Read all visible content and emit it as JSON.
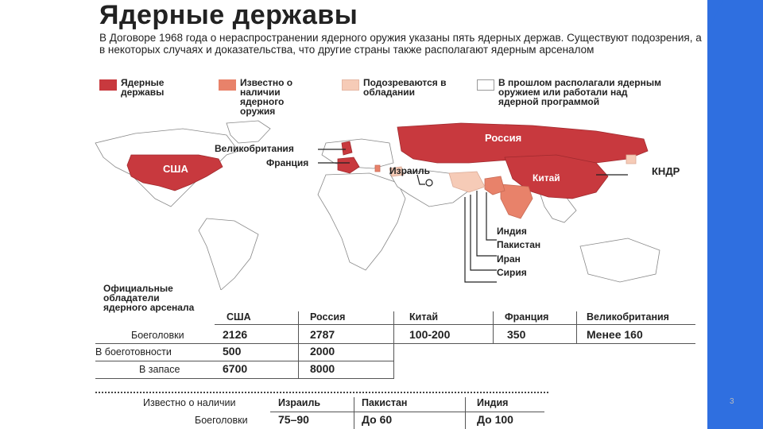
{
  "title": "Ядерные державы",
  "subtitle": "В Договоре 1968 года о нераспространении ядерного оружия указаны пять ядерных держав. Существуют подозрения, а в некоторых случаях и доказательства, что другие страны также располагают ядерным арсеналом",
  "colors": {
    "nuclear": "#c8393e",
    "known": "#e8826a",
    "suspected": "#f6cbb7",
    "former": "#ffffff",
    "accent": "#2f6fe0"
  },
  "legend": [
    {
      "label": "Ядерные державы"
    },
    {
      "label": "Известно о наличии ядерного оружия"
    },
    {
      "label": "Подозреваются в обладании"
    },
    {
      "label": "В прошлом располагали ядерным оружием или работали над ядерной программой"
    }
  ],
  "map_labels": {
    "usa": "США",
    "uk": "Великобритания",
    "france": "Франция",
    "israel": "Израиль",
    "russia": "Россия",
    "china": "Китай",
    "nk": "КНДР",
    "india": "Индия",
    "pakistan": "Пакистан",
    "iran": "Иран",
    "syria": "Сирия"
  },
  "official": {
    "heading": "Официальные обладатели ядерного арсенала",
    "columns": [
      "США",
      "Россия",
      "Китай",
      "Франция",
      "Великобритания"
    ],
    "rows": [
      {
        "label": "Боеголовки",
        "values": [
          "2126",
          "2787",
          "100-200",
          "350",
          "Менее 160"
        ]
      },
      {
        "label": "В боеготовности",
        "values": [
          "500",
          "2000"
        ]
      },
      {
        "label": "В запасе",
        "values": [
          "6700",
          "8000"
        ]
      }
    ]
  },
  "known": {
    "heading": "Известно о наличии",
    "columns": [
      "Израиль",
      "Пакистан",
      "Индия"
    ],
    "row_label": "Боеголовки",
    "values": [
      "75–90",
      "До 60",
      "До 100"
    ]
  },
  "page_number": "3"
}
